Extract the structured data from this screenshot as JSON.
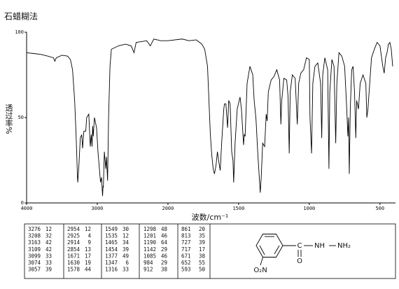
{
  "chart_data": {
    "type": "line",
    "title": "石蜡糊法",
    "ylabel": "透过率%",
    "xlabel": "波数/cm⁻¹",
    "xlim": [
      4000,
      400
    ],
    "xticks": [
      4000,
      3000,
      2000,
      1500,
      1000,
      500
    ],
    "ylim": [
      0,
      100
    ],
    "yticks": [
      0,
      50,
      100
    ],
    "color": "#000000",
    "x": [
      4000,
      3900,
      3800,
      3700,
      3620,
      3600,
      3580,
      3500,
      3420,
      3380,
      3350,
      3320,
      3300,
      3280,
      3276,
      3260,
      3240,
      3220,
      3208,
      3190,
      3163,
      3150,
      3120,
      3109,
      3099,
      3085,
      3074,
      3065,
      3057,
      3040,
      3010,
      2990,
      2970,
      2954,
      2940,
      2925,
      2918,
      2914,
      2900,
      2880,
      2870,
      2854,
      2840,
      2820,
      2800,
      2700,
      2600,
      2520,
      2480,
      2450,
      2300,
      2250,
      2200,
      2100,
      2000,
      1900,
      1850,
      1800,
      1760,
      1740,
      1720,
      1700,
      1690,
      1680,
      1671,
      1660,
      1650,
      1640,
      1630,
      1620,
      1605,
      1600,
      1590,
      1578,
      1570,
      1560,
      1549,
      1540,
      1535,
      1525,
      1510,
      1490,
      1480,
      1465,
      1460,
      1454,
      1440,
      1420,
      1400,
      1390,
      1377,
      1365,
      1347,
      1340,
      1330,
      1316,
      1305,
      1298,
      1290,
      1270,
      1250,
      1230,
      1210,
      1201,
      1195,
      1190,
      1180,
      1160,
      1150,
      1142,
      1135,
      1120,
      1100,
      1085,
      1075,
      1060,
      1040,
      1020,
      1000,
      995,
      984,
      975,
      960,
      940,
      920,
      912,
      905,
      890,
      870,
      861,
      855,
      840,
      825,
      813,
      805,
      790,
      770,
      750,
      735,
      727,
      722,
      717,
      710,
      700,
      690,
      680,
      671,
      665,
      652,
      640,
      620,
      600,
      593,
      585,
      560,
      540,
      520,
      500,
      480,
      470,
      460,
      450,
      440,
      430,
      420,
      410
    ],
    "values": [
      88,
      87.5,
      87,
      86,
      85,
      83,
      85,
      86.5,
      86,
      84,
      78,
      60,
      40,
      15,
      12,
      22,
      38,
      40,
      32,
      42,
      42,
      50,
      52,
      42,
      33,
      40,
      33,
      45,
      39,
      50,
      44,
      30,
      20,
      12,
      15,
      4,
      10,
      9,
      30,
      20,
      27,
      13,
      50,
      80,
      90,
      92,
      93,
      92,
      88,
      94,
      95,
      92,
      96,
      95,
      95,
      96,
      95,
      95.5,
      93,
      90,
      80,
      40,
      28,
      20,
      17,
      22,
      30,
      24,
      19,
      35,
      55,
      58,
      58,
      44,
      60,
      58,
      30,
      25,
      12,
      35,
      55,
      62,
      55,
      34,
      40,
      39,
      70,
      80,
      75,
      60,
      49,
      30,
      6,
      15,
      35,
      33,
      52,
      48,
      65,
      72,
      74,
      78,
      72,
      46,
      60,
      64,
      73,
      72,
      62,
      29,
      65,
      75,
      73,
      46,
      70,
      76,
      78,
      85,
      84,
      50,
      29,
      70,
      80,
      82,
      70,
      38,
      75,
      85,
      78,
      20,
      65,
      84,
      80,
      35,
      70,
      88,
      86,
      80,
      55,
      39,
      50,
      17,
      55,
      78,
      80,
      65,
      38,
      60,
      55,
      70,
      75,
      70,
      50,
      55,
      85,
      90,
      94,
      92,
      80,
      76,
      85,
      88,
      93,
      94,
      90,
      80
    ]
  },
  "peak_table": {
    "columns": [
      [
        [
          3276,
          12
        ],
        [
          3208,
          32
        ],
        [
          3163,
          42
        ],
        [
          3109,
          42
        ],
        [
          3099,
          33
        ],
        [
          3074,
          33
        ],
        [
          3057,
          39
        ]
      ],
      [
        [
          2954,
          12
        ],
        [
          2925,
          4
        ],
        [
          2914,
          9
        ],
        [
          2854,
          13
        ],
        [
          1671,
          17
        ],
        [
          1630,
          19
        ],
        [
          1578,
          44
        ]
      ],
      [
        [
          1549,
          30
        ],
        [
          1535,
          12
        ],
        [
          1465,
          34
        ],
        [
          1454,
          39
        ],
        [
          1377,
          49
        ],
        [
          1347,
          6
        ],
        [
          1316,
          33
        ]
      ],
      [
        [
          1298,
          48
        ],
        [
          1201,
          46
        ],
        [
          1190,
          64
        ],
        [
          1142,
          29
        ],
        [
          1085,
          46
        ],
        [
          984,
          29
        ],
        [
          912,
          38
        ]
      ],
      [
        [
          861,
          20
        ],
        [
          813,
          35
        ],
        [
          727,
          39
        ],
        [
          717,
          17
        ],
        [
          671,
          38
        ],
        [
          652,
          55
        ],
        [
          593,
          50
        ]
      ]
    ]
  },
  "structure": {
    "carbonyl_c": "C",
    "carbonyl_o": "O",
    "amine_nh": "NH",
    "amine_nh2": "NH₂",
    "nitro": "O₂N"
  }
}
